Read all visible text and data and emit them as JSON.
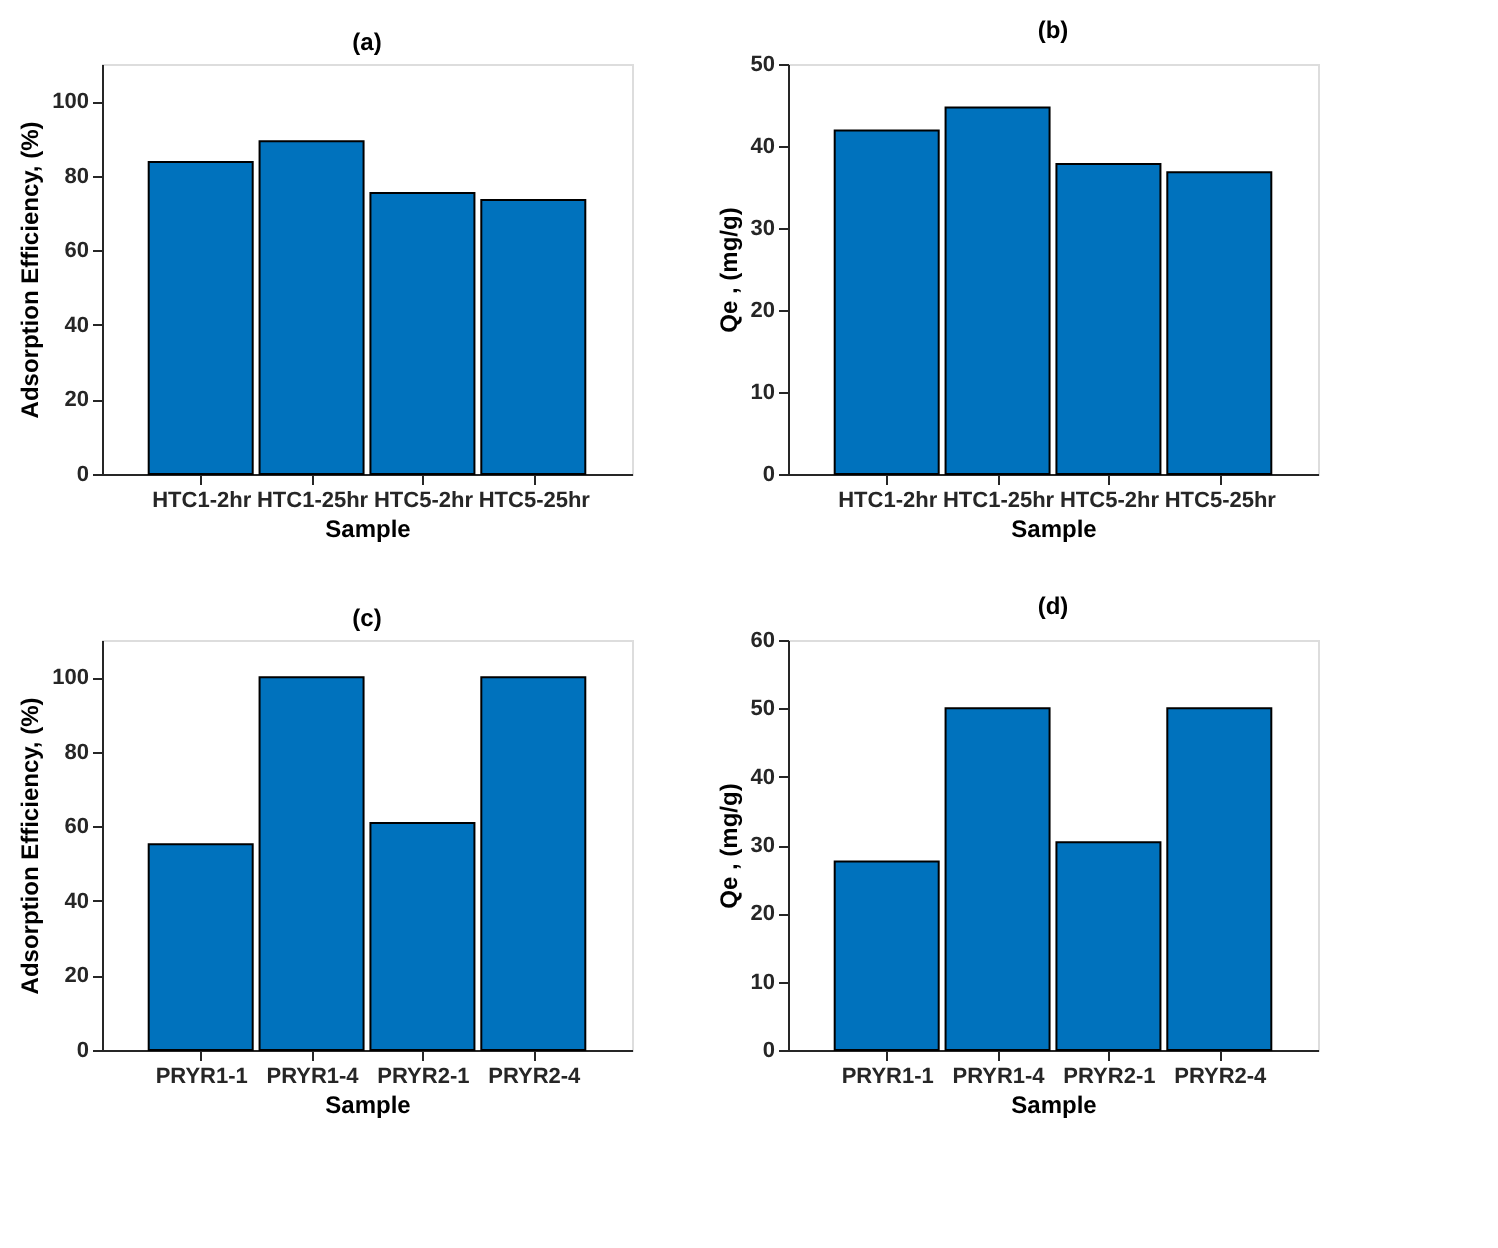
{
  "chart_data": [
    {
      "type": "bar",
      "title": "(a)",
      "xlabel": "Sample",
      "ylabel": "Adsorption Efficiency, (%)",
      "categories": [
        "HTC1-2hr",
        "HTC1-25hr",
        "HTC5-2hr",
        "HTC5-25hr"
      ],
      "values": [
        83.7,
        89.3,
        75.4,
        73.5
      ],
      "color": "#0072bd",
      "ylim": [
        0,
        110
      ],
      "yticks": [
        0,
        20,
        40,
        60,
        80,
        100
      ]
    },
    {
      "type": "bar",
      "title": "(b)",
      "xlabel": "Sample",
      "ylabel": "Qe , (mg/g)",
      "categories": [
        "HTC1-2hr",
        "HTC1-25hr",
        "HTC5-2hr",
        "HTC5-25hr"
      ],
      "values": [
        41.9,
        44.7,
        37.8,
        36.8
      ],
      "color": "#0072bd",
      "ylim": [
        0,
        50
      ],
      "yticks": [
        0,
        10,
        20,
        30,
        40,
        50
      ]
    },
    {
      "type": "bar",
      "title": "(c)",
      "xlabel": "Sample",
      "ylabel": "Adsorption Efficiency, (%)",
      "categories": [
        "PRYR1-1",
        "PRYR1-4",
        "PRYR2-1",
        "PRYR2-4"
      ],
      "values": [
        55.2,
        100,
        60.9,
        100
      ],
      "color": "#0072bd",
      "ylim": [
        0,
        110
      ],
      "yticks": [
        0,
        20,
        40,
        60,
        80,
        100
      ]
    },
    {
      "type": "bar",
      "title": "(d)",
      "xlabel": "Sample",
      "ylabel": "Qe , (mg/g)",
      "categories": [
        "PRYR1-1",
        "PRYR1-4",
        "PRYR2-1",
        "PRYR2-4"
      ],
      "values": [
        27.6,
        50,
        30.4,
        50
      ],
      "color": "#0072bd",
      "ylim": [
        0,
        60
      ],
      "yticks": [
        0,
        10,
        20,
        30,
        40,
        50,
        60
      ]
    }
  ]
}
